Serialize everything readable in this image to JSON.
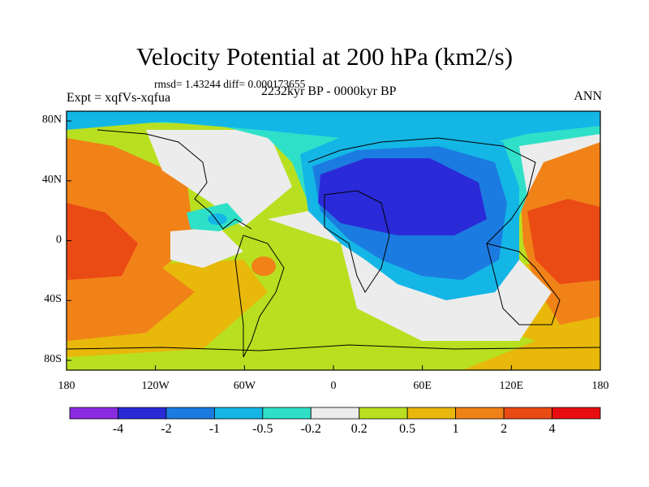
{
  "title": "Velocity Potential at 200 hPa (km2/s)",
  "stats": "rmsd= 1.43244 diff= 0.000173655",
  "experiment": "Expt = xqfVs-xqfua",
  "period": "2232kyr BP - 0000kyr BP",
  "season": "ANN",
  "axes": {
    "y_ticks": [
      "80N",
      "40N",
      "0",
      "40S",
      "80S"
    ],
    "x_ticks": [
      "180",
      "120W",
      "60W",
      "0",
      "60E",
      "120E",
      "180"
    ]
  },
  "colorbar": {
    "labels": [
      "-4",
      "-2",
      "-1",
      "-0.5",
      "-0.2",
      "0.2",
      "0.5",
      "1",
      "2",
      "4"
    ],
    "colors": [
      "#8a2be2",
      "#2a2ad8",
      "#1c7be0",
      "#14b6e6",
      "#2fe0c8",
      "#ececec",
      "#b8e020",
      "#e8b80a",
      "#f08218",
      "#ea4a14",
      "#e80e10"
    ]
  }
}
